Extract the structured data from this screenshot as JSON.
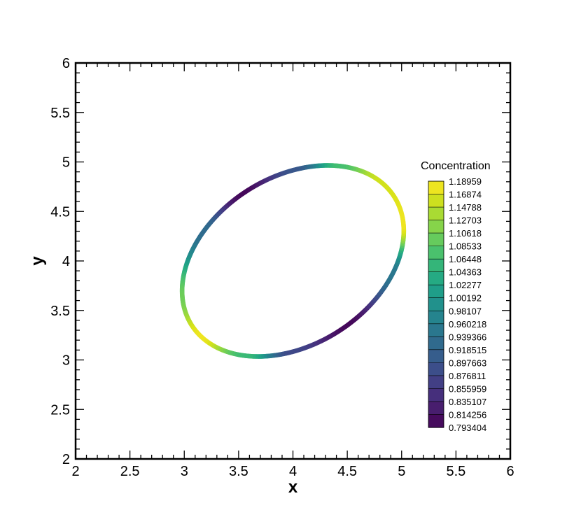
{
  "chart_data": {
    "type": "scatter",
    "xlabel": "x",
    "ylabel": "y",
    "xlim": [
      2,
      6
    ],
    "ylim": [
      2,
      6
    ],
    "xticks": [
      "2",
      "2.5",
      "3",
      "3.5",
      "4",
      "4.5",
      "5",
      "5.5",
      "6"
    ],
    "yticks": [
      "2",
      "2.5",
      "3",
      "3.5",
      "4",
      "4.5",
      "5",
      "5.5",
      "6"
    ],
    "grid": false,
    "legend_title": "Concentration",
    "legend_placement": "right",
    "colorbar_levels": [
      "1.18959",
      "1.16874",
      "1.14788",
      "1.12703",
      "1.10618",
      "1.08533",
      "1.06448",
      "1.04363",
      "1.02277",
      "1.00192",
      "0.98107",
      "0.960218",
      "0.939366",
      "0.918515",
      "0.897663",
      "0.876811",
      "0.855959",
      "0.835107",
      "0.814256",
      "0.793404"
    ],
    "colormap": [
      "#fde725",
      "#d8e219",
      "#addc30",
      "#84d44b",
      "#5ec962",
      "#3fbc73",
      "#28ae80",
      "#1fa088",
      "#21918c",
      "#26828e",
      "#2c728e",
      "#33638d",
      "#3b528b",
      "#424086",
      "#472d7b",
      "#48186a",
      "#440154"
    ],
    "ring": {
      "center": [
        4.0,
        4.0
      ],
      "semi_axes": [
        1.14,
        0.82
      ],
      "rotation_deg": 40,
      "points": [
        {
          "x": 3.15,
          "y": 4.3,
          "c": 0.93
        },
        {
          "x": 3.5,
          "y": 4.68,
          "c": 0.8
        },
        {
          "x": 4.0,
          "y": 4.95,
          "c": 0.9
        },
        {
          "x": 4.42,
          "y": 5.03,
          "c": 1.07
        },
        {
          "x": 4.82,
          "y": 4.88,
          "c": 1.16
        },
        {
          "x": 5.07,
          "y": 4.4,
          "c": 1.18
        },
        {
          "x": 4.97,
          "y": 3.9,
          "c": 0.95
        },
        {
          "x": 4.55,
          "y": 3.35,
          "c": 0.8
        },
        {
          "x": 4.0,
          "y": 3.07,
          "c": 0.88
        },
        {
          "x": 3.58,
          "y": 2.98,
          "c": 1.06
        },
        {
          "x": 3.1,
          "y": 3.15,
          "c": 1.18
        },
        {
          "x": 2.92,
          "y": 3.6,
          "c": 1.1
        }
      ]
    }
  }
}
